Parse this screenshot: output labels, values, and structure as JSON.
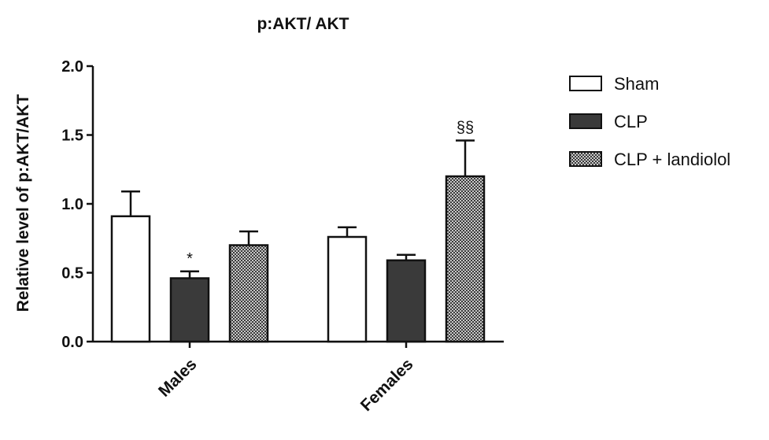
{
  "chart_data": {
    "type": "bar",
    "title": "p:AKT/ AKT",
    "xlabel": "",
    "ylabel": "Relative level of p:AKT/AKT",
    "ylim": [
      0,
      2.0
    ],
    "yticks": [
      "0.0",
      "0.5",
      "1.0",
      "1.5",
      "2.0"
    ],
    "categories": [
      "Males",
      "Females"
    ],
    "series": [
      {
        "name": "Sham",
        "values": [
          0.91,
          0.76
        ],
        "errors": [
          0.18,
          0.07
        ],
        "fill": "white"
      },
      {
        "name": "CLP",
        "values": [
          0.46,
          0.59
        ],
        "errors": [
          0.05,
          0.04
        ],
        "fill": "dark"
      },
      {
        "name": "CLP + landiolol",
        "values": [
          0.7,
          1.2
        ],
        "errors": [
          0.1,
          0.26
        ],
        "fill": "dotted"
      }
    ],
    "annotations": [
      {
        "series": "CLP",
        "category": "Males",
        "text": "*"
      },
      {
        "series": "CLP + landiolol",
        "category": "Females",
        "text": "§§"
      }
    ],
    "legend_position": "right",
    "grid": false,
    "colors": {
      "dark": "#3a3a3a",
      "stroke": "#111111",
      "white": "#ffffff",
      "dot_bg": "#c8c8c8",
      "dot_fg": "#3a3a3a"
    }
  }
}
